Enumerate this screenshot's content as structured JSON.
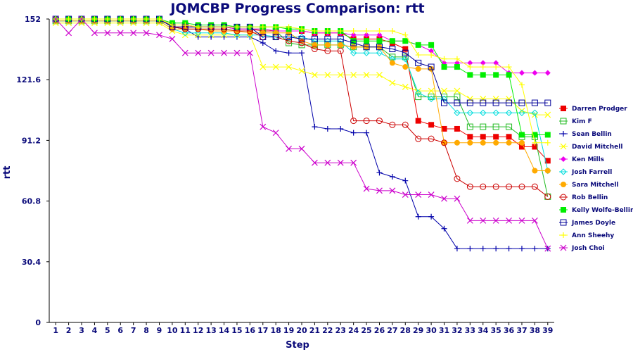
{
  "chart_data": {
    "type": "line",
    "title": "JQMCBP Progress Comparison: rtt",
    "xlabel": "Step",
    "ylabel": "rtt",
    "x": [
      1,
      2,
      3,
      4,
      5,
      6,
      7,
      8,
      9,
      10,
      11,
      12,
      13,
      14,
      15,
      16,
      17,
      18,
      19,
      20,
      21,
      22,
      23,
      24,
      25,
      26,
      27,
      28,
      29,
      30,
      31,
      32,
      33,
      34,
      35,
      36,
      37,
      38,
      39
    ],
    "ylim": [
      0,
      152
    ],
    "yticks": [
      "0",
      "30.4",
      "60.8",
      "91.2",
      "121.6",
      "152"
    ],
    "grid": false,
    "legend_position": "right",
    "series": [
      {
        "name": "Darren Prodger",
        "color": "#ee0000",
        "marker": "square-filled",
        "values": [
          152,
          152,
          152,
          152,
          152,
          152,
          152,
          152,
          152,
          148,
          148,
          148,
          148,
          148,
          147,
          147,
          146,
          146,
          146,
          146,
          145,
          145,
          145,
          142,
          142,
          142,
          140,
          137,
          101,
          99,
          97,
          97,
          93,
          93,
          93,
          93,
          88,
          88,
          81
        ]
      },
      {
        "name": "Kim F",
        "color": "#22bb22",
        "marker": "square-open",
        "values": [
          151,
          151,
          151,
          151,
          151,
          151,
          151,
          151,
          151,
          149,
          149,
          148,
          148,
          148,
          147,
          147,
          147,
          146,
          140,
          139,
          139,
          139,
          139,
          138,
          138,
          138,
          133,
          133,
          113,
          113,
          113,
          113,
          98,
          98,
          98,
          98,
          93,
          93,
          63
        ]
      },
      {
        "name": "Sean Bellin",
        "color": "#0000aa",
        "marker": "plus",
        "values": [
          152,
          152,
          152,
          152,
          152,
          152,
          152,
          152,
          152,
          148,
          147,
          143,
          143,
          143,
          143,
          143,
          140,
          136,
          135,
          135,
          98,
          97,
          97,
          95,
          95,
          75,
          73,
          71,
          53,
          53,
          47,
          37,
          37,
          37,
          37,
          37,
          37,
          37,
          37
        ]
      },
      {
        "name": "David Mitchell",
        "color": "#ffff00",
        "marker": "x",
        "values": [
          150,
          150,
          150,
          150,
          150,
          150,
          150,
          150,
          150,
          146,
          144,
          144,
          144,
          144,
          144,
          144,
          128,
          128,
          128,
          126,
          124,
          124,
          124,
          124,
          124,
          124,
          120,
          118,
          116,
          116,
          116,
          116,
          112,
          112,
          112,
          112,
          106,
          104,
          104
        ]
      },
      {
        "name": "Ken Mills",
        "color": "#ee00ee",
        "marker": "diamond-filled",
        "values": [
          152,
          152,
          152,
          152,
          152,
          152,
          152,
          152,
          152,
          149,
          149,
          148,
          148,
          148,
          147,
          147,
          147,
          146,
          146,
          146,
          145,
          145,
          145,
          144,
          144,
          144,
          141,
          141,
          139,
          136,
          130,
          130,
          130,
          130,
          130,
          125,
          125,
          125,
          125
        ]
      },
      {
        "name": "Josh Farrell",
        "color": "#00dddd",
        "marker": "diamond-open",
        "values": [
          151,
          151,
          151,
          151,
          151,
          151,
          151,
          151,
          151,
          147,
          145,
          145,
          145,
          145,
          144,
          144,
          144,
          143,
          143,
          143,
          141,
          141,
          141,
          135,
          135,
          135,
          132,
          132,
          115,
          112,
          112,
          105,
          105,
          105,
          105,
          105,
          105,
          105,
          76
        ]
      },
      {
        "name": "Sara Mitchell",
        "color": "#ffaa00",
        "marker": "circle-filled",
        "values": [
          151,
          151,
          151,
          151,
          151,
          151,
          151,
          151,
          151,
          147,
          147,
          147,
          146,
          146,
          146,
          145,
          145,
          145,
          145,
          141,
          139,
          139,
          139,
          138,
          138,
          138,
          130,
          128,
          127,
          127,
          90,
          90,
          90,
          90,
          90,
          90,
          90,
          76,
          76
        ]
      },
      {
        "name": "Rob Bellin",
        "color": "#cc0000",
        "marker": "circle-open",
        "values": [
          152,
          152,
          152,
          152,
          152,
          152,
          152,
          152,
          152,
          148,
          147,
          147,
          147,
          147,
          146,
          146,
          143,
          143,
          141,
          140,
          137,
          136,
          136,
          101,
          101,
          101,
          99,
          99,
          92,
          92,
          90,
          72,
          68,
          68,
          68,
          68,
          68,
          68,
          63
        ]
      },
      {
        "name": "Kelly Wolfe-Bellin",
        "color": "#00ee00",
        "marker": "square-filled",
        "values": [
          152,
          152,
          152,
          152,
          152,
          152,
          152,
          152,
          152,
          150,
          150,
          149,
          149,
          149,
          148,
          148,
          148,
          148,
          147,
          147,
          146,
          146,
          146,
          141,
          141,
          141,
          141,
          141,
          139,
          139,
          128,
          128,
          124,
          124,
          124,
          124,
          94,
          94,
          94
        ]
      },
      {
        "name": "James Doyle",
        "color": "#000099",
        "marker": "square-open",
        "values": [
          152,
          152,
          152,
          152,
          152,
          152,
          152,
          152,
          152,
          148,
          148,
          148,
          148,
          148,
          148,
          148,
          143,
          143,
          143,
          142,
          142,
          142,
          142,
          140,
          138,
          138,
          137,
          135,
          130,
          128,
          110,
          110,
          110,
          110,
          110,
          110,
          110,
          110,
          110
        ]
      },
      {
        "name": "Ann Sheehy",
        "color": "#ffff00",
        "marker": "plus",
        "values": [
          152,
          152,
          152,
          152,
          152,
          152,
          152,
          152,
          152,
          149,
          149,
          148,
          148,
          148,
          148,
          148,
          148,
          148,
          148,
          147,
          146,
          146,
          146,
          146,
          146,
          146,
          146,
          144,
          134,
          134,
          132,
          132,
          128,
          128,
          128,
          128,
          119,
          90,
          90
        ]
      },
      {
        "name": "Josh Choi",
        "color": "#cc00cc",
        "marker": "x",
        "values": [
          152,
          145,
          152,
          145,
          145,
          145,
          145,
          145,
          144,
          142,
          135,
          135,
          135,
          135,
          135,
          135,
          98,
          95,
          87,
          87,
          80,
          80,
          80,
          80,
          67,
          66,
          66,
          64,
          64,
          64,
          62,
          62,
          51,
          51,
          51,
          51,
          51,
          51,
          37
        ]
      }
    ]
  }
}
